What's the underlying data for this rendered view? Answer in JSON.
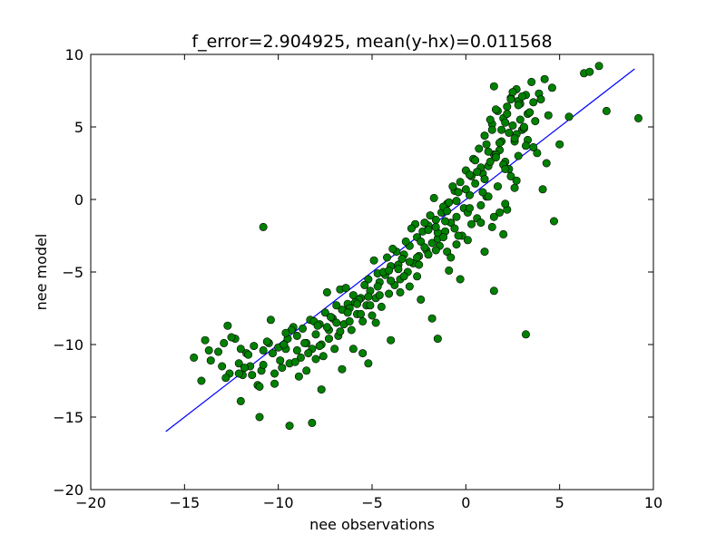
{
  "chart_data": {
    "type": "scatter",
    "title": "f_error=2.904925, mean(y-hx)=0.011568",
    "xlabel": "nee observations",
    "ylabel": "nee model",
    "xlim": [
      -20,
      10
    ],
    "ylim": [
      -20,
      10
    ],
    "xticks": [
      -20,
      -15,
      -10,
      -5,
      0,
      5,
      10
    ],
    "yticks": [
      -20,
      -15,
      -10,
      -5,
      0,
      5,
      10
    ],
    "xtick_labels": [
      "−20",
      "−15",
      "−10",
      "−5",
      "0",
      "5",
      "10"
    ],
    "ytick_labels": [
      "−20",
      "−15",
      "−10",
      "−5",
      "0",
      "5",
      "10"
    ],
    "grid": false,
    "marker_color": "#008000",
    "line_color": "#0000ff",
    "series": [
      {
        "kind": "line",
        "x": [
          -16,
          9
        ],
        "y": [
          -16,
          9
        ]
      },
      {
        "kind": "scatter",
        "x": [
          -14.5,
          -14.1,
          -13.9,
          -13.7,
          -13.6,
          -13.2,
          -12.9,
          -12.7,
          -12.6,
          -12.3,
          -12.1,
          -12.0,
          -11.9,
          -11.7,
          -11.5,
          -11.3,
          -11.1,
          -10.9,
          -10.8,
          -10.5,
          -10.3,
          -10.2,
          -10.0,
          -9.8,
          -9.7,
          -9.5,
          -9.4,
          -9.2,
          -9.0,
          -8.9,
          -8.7,
          -8.5,
          -8.3,
          -8.2,
          -8.0,
          -7.8,
          -7.6,
          -7.5,
          -7.3,
          -7.1,
          -7.0,
          -6.8,
          -6.6,
          -6.5,
          -6.3,
          -6.1,
          -6.0,
          -5.8,
          -5.6,
          -5.5,
          -5.3,
          -5.1,
          -5.0,
          -4.8,
          -4.6,
          -4.5,
          -4.3,
          -4.1,
          -4.0,
          -3.8,
          -3.6,
          -3.5,
          -3.3,
          -3.1,
          -3.0,
          -2.8,
          -2.6,
          -2.5,
          -2.3,
          -2.1,
          -2.0,
          -1.8,
          -1.6,
          -1.5,
          -1.3,
          -1.1,
          -1.0,
          -0.8,
          -0.6,
          -0.5,
          -0.3,
          -0.1,
          0.0,
          0.2,
          0.4,
          0.5,
          0.7,
          0.9,
          1.0,
          1.2,
          1.4,
          1.5,
          1.7,
          1.9,
          2.0,
          2.2,
          2.4,
          2.5,
          2.7,
          2.9,
          3.0,
          3.2,
          3.4,
          3.5,
          3.7,
          3.9,
          4.0,
          4.2,
          4.4,
          4.6,
          5.0,
          5.5,
          6.3,
          7.5,
          9.2,
          -13.0,
          -12.5,
          -11.8,
          -11.0,
          -10.6,
          -9.9,
          -9.3,
          -8.8,
          -8.1,
          -7.7,
          -7.2,
          -6.7,
          -6.2,
          -5.7,
          -5.2,
          -4.7,
          -4.2,
          -3.7,
          -3.2,
          -2.7,
          -2.2,
          -1.7,
          -1.2,
          -0.7,
          -0.2,
          0.3,
          0.8,
          1.3,
          1.8,
          2.3,
          2.8,
          3.3,
          3.8,
          4.3,
          -12.8,
          -11.6,
          -10.4,
          -9.6,
          -8.6,
          -7.9,
          -7.4,
          -6.9,
          -6.4,
          -5.9,
          -5.4,
          -4.9,
          -4.4,
          -3.9,
          -3.4,
          -2.9,
          -2.4,
          -1.9,
          -1.4,
          -0.9,
          -0.4,
          0.1,
          0.6,
          1.1,
          1.6,
          2.1,
          2.6,
          3.1,
          3.6,
          4.1,
          1.3,
          1.6,
          1.9,
          2.2,
          2.5,
          2.8,
          3.1,
          3.4,
          1.5,
          1.8,
          2.1,
          2.4,
          2.7,
          3.0,
          3.3,
          3.6,
          1.2,
          2.0,
          2.6,
          3.2,
          0.5,
          1.0,
          1.4,
          1.7,
          2.3,
          2.9,
          0.2,
          0.8,
          1.1,
          1.6,
          2.2,
          2.7,
          0.0,
          0.6,
          1.2,
          1.8,
          2.4,
          -0.5,
          0.3,
          0.9,
          1.5,
          2.1,
          -1.0,
          -0.6,
          0.2,
          0.8,
          1.4,
          2.0,
          -1.5,
          -1.1,
          -0.5,
          0.1,
          -2.0,
          -1.6,
          -1.0,
          -0.4,
          -2.6,
          -2.2,
          -1.6,
          -3.0,
          -2.6,
          -2.0,
          -3.6,
          -3.0,
          -2.5,
          -4.0,
          -3.5,
          -4.6,
          -4.1,
          -5.1,
          -4.7,
          -5.6,
          -5.2,
          -6.2,
          -5.8,
          -6.7,
          -6.3,
          -7.3,
          -6.9,
          -7.8,
          -7.4,
          -8.4,
          -8.0,
          -9.0,
          -8.5,
          -9.6,
          -9.1,
          -10.2,
          -9.7,
          -10.8,
          -11.4,
          -12.0,
          -10.8,
          -8.2,
          -9.4,
          -11.0,
          -12.1,
          3.2,
          1.5,
          1.0,
          -1.5,
          -0.3,
          2.1,
          4.7,
          -0.8,
          6.6,
          7.1,
          2.8,
          2.6,
          -1.2,
          -5.2,
          -6.0,
          -3.3,
          -4.0,
          -4.8,
          -7.7,
          -5.5,
          -6.6,
          -2.4,
          -1.8,
          -0.9
        ],
        "y": [
          -10.9,
          -12.5,
          -9.7,
          -10.4,
          -11.1,
          -10.5,
          -9.9,
          -8.7,
          -12.0,
          -9.6,
          -11.3,
          -10.3,
          -12.1,
          -10.6,
          -11.5,
          -10.1,
          -12.8,
          -11.8,
          -10.4,
          -9.9,
          -10.6,
          -12.7,
          -10.2,
          -11.6,
          -10.0,
          -9.6,
          -11.3,
          -8.8,
          -10.4,
          -12.2,
          -8.9,
          -9.9,
          -8.3,
          -10.3,
          -9.3,
          -8.6,
          -10.8,
          -7.8,
          -9.0,
          -8.2,
          -10.3,
          -9.4,
          -7.6,
          -8.6,
          -7.2,
          -9.0,
          -6.6,
          -7.9,
          -6.8,
          -8.4,
          -7.3,
          -6.3,
          -8.0,
          -6.8,
          -5.7,
          -7.4,
          -5.2,
          -6.5,
          -4.6,
          -5.9,
          -4.5,
          -5.5,
          -3.8,
          -5.0,
          -3.2,
          -4.4,
          -2.6,
          -3.9,
          -2.2,
          -3.5,
          -1.8,
          -3.0,
          -1.4,
          -2.7,
          -0.9,
          -2.2,
          -0.3,
          -1.6,
          0.6,
          -1.2,
          1.2,
          -0.6,
          2.0,
          0.3,
          2.8,
          1.1,
          3.5,
          1.8,
          4.4,
          2.3,
          5.2,
          3.1,
          6.1,
          4.0,
          5.6,
          6.4,
          7.0,
          5.1,
          7.6,
          6.6,
          4.8,
          7.2,
          6.0,
          8.1,
          5.4,
          7.3,
          6.9,
          8.3,
          5.8,
          7.7,
          3.8,
          5.7,
          8.7,
          6.1,
          5.6,
          -11.5,
          -9.5,
          -11.6,
          -12.9,
          -9.8,
          -11.1,
          -9.0,
          -10.9,
          -8.4,
          -10.0,
          -8.1,
          -6.2,
          -7.5,
          -6.9,
          -5.5,
          -5.1,
          -4.0,
          -3.6,
          -2.9,
          -1.7,
          -1.6,
          0.1,
          -0.5,
          0.9,
          -2.5,
          1.6,
          2.2,
          2.6,
          3.4,
          4.6,
          6.8,
          5.9,
          3.2,
          2.5,
          -12.3,
          -10.7,
          -8.3,
          -9.2,
          -9.9,
          -8.7,
          -6.4,
          -7.3,
          -6.1,
          -7.1,
          -5.9,
          -4.2,
          -5.0,
          -3.4,
          -4.1,
          -2.0,
          -2.9,
          -1.1,
          -3.2,
          -0.2,
          0.5,
          -0.9,
          1.9,
          0.2,
          3.1,
          2.6,
          4.0,
          4.9,
          3.6,
          0.7,
          5.5,
          6.2,
          4.8,
          5.9,
          7.4,
          6.5,
          5.0,
          6.0,
          7.8,
          3.9,
          5.3,
          6.9,
          4.5,
          7.1,
          4.1,
          6.7,
          3.3,
          2.4,
          4.2,
          3.7,
          2.7,
          1.4,
          4.8,
          0.9,
          2.1,
          5.5,
          1.7,
          -0.4,
          3.8,
          2.9,
          -0.7,
          1.3,
          0.7,
          -1.3,
          0.2,
          -0.9,
          1.6,
          -0.1,
          -1.7,
          0.5,
          -1.2,
          -0.3,
          -0.8,
          -2.0,
          -0.6,
          -1.6,
          -1.9,
          -2.4,
          -2.3,
          -1.5,
          -3.1,
          -2.8,
          -2.1,
          -3.5,
          -3.6,
          -2.5,
          -4.0,
          -3.3,
          -1.9,
          -4.3,
          -5.3,
          -3.8,
          -4.8,
          -6.0,
          -4.5,
          -5.6,
          -6.4,
          -6.6,
          -4.9,
          -7.3,
          -6.0,
          -7.9,
          -6.7,
          -8.4,
          -7.2,
          -9.1,
          -7.8,
          -9.6,
          -8.5,
          -10.1,
          -8.8,
          -10.6,
          -11.0,
          -9.4,
          -11.8,
          -10.3,
          -11.2,
          -12.0,
          -10.0,
          -11.4,
          -12.1,
          -13.9,
          -1.9,
          -15.4,
          -15.6,
          -15.0,
          -12.0,
          -9.3,
          -6.3,
          -3.6,
          -9.6,
          -5.5,
          2.1,
          -1.5,
          -4.0,
          8.8,
          9.2,
          3.0,
          0.8,
          -2.6,
          -11.3,
          -10.3,
          -5.3,
          -9.7,
          -8.5,
          -13.1,
          -10.6,
          -11.7,
          -6.9,
          -8.2,
          -4.9
        ]
      }
    ]
  }
}
